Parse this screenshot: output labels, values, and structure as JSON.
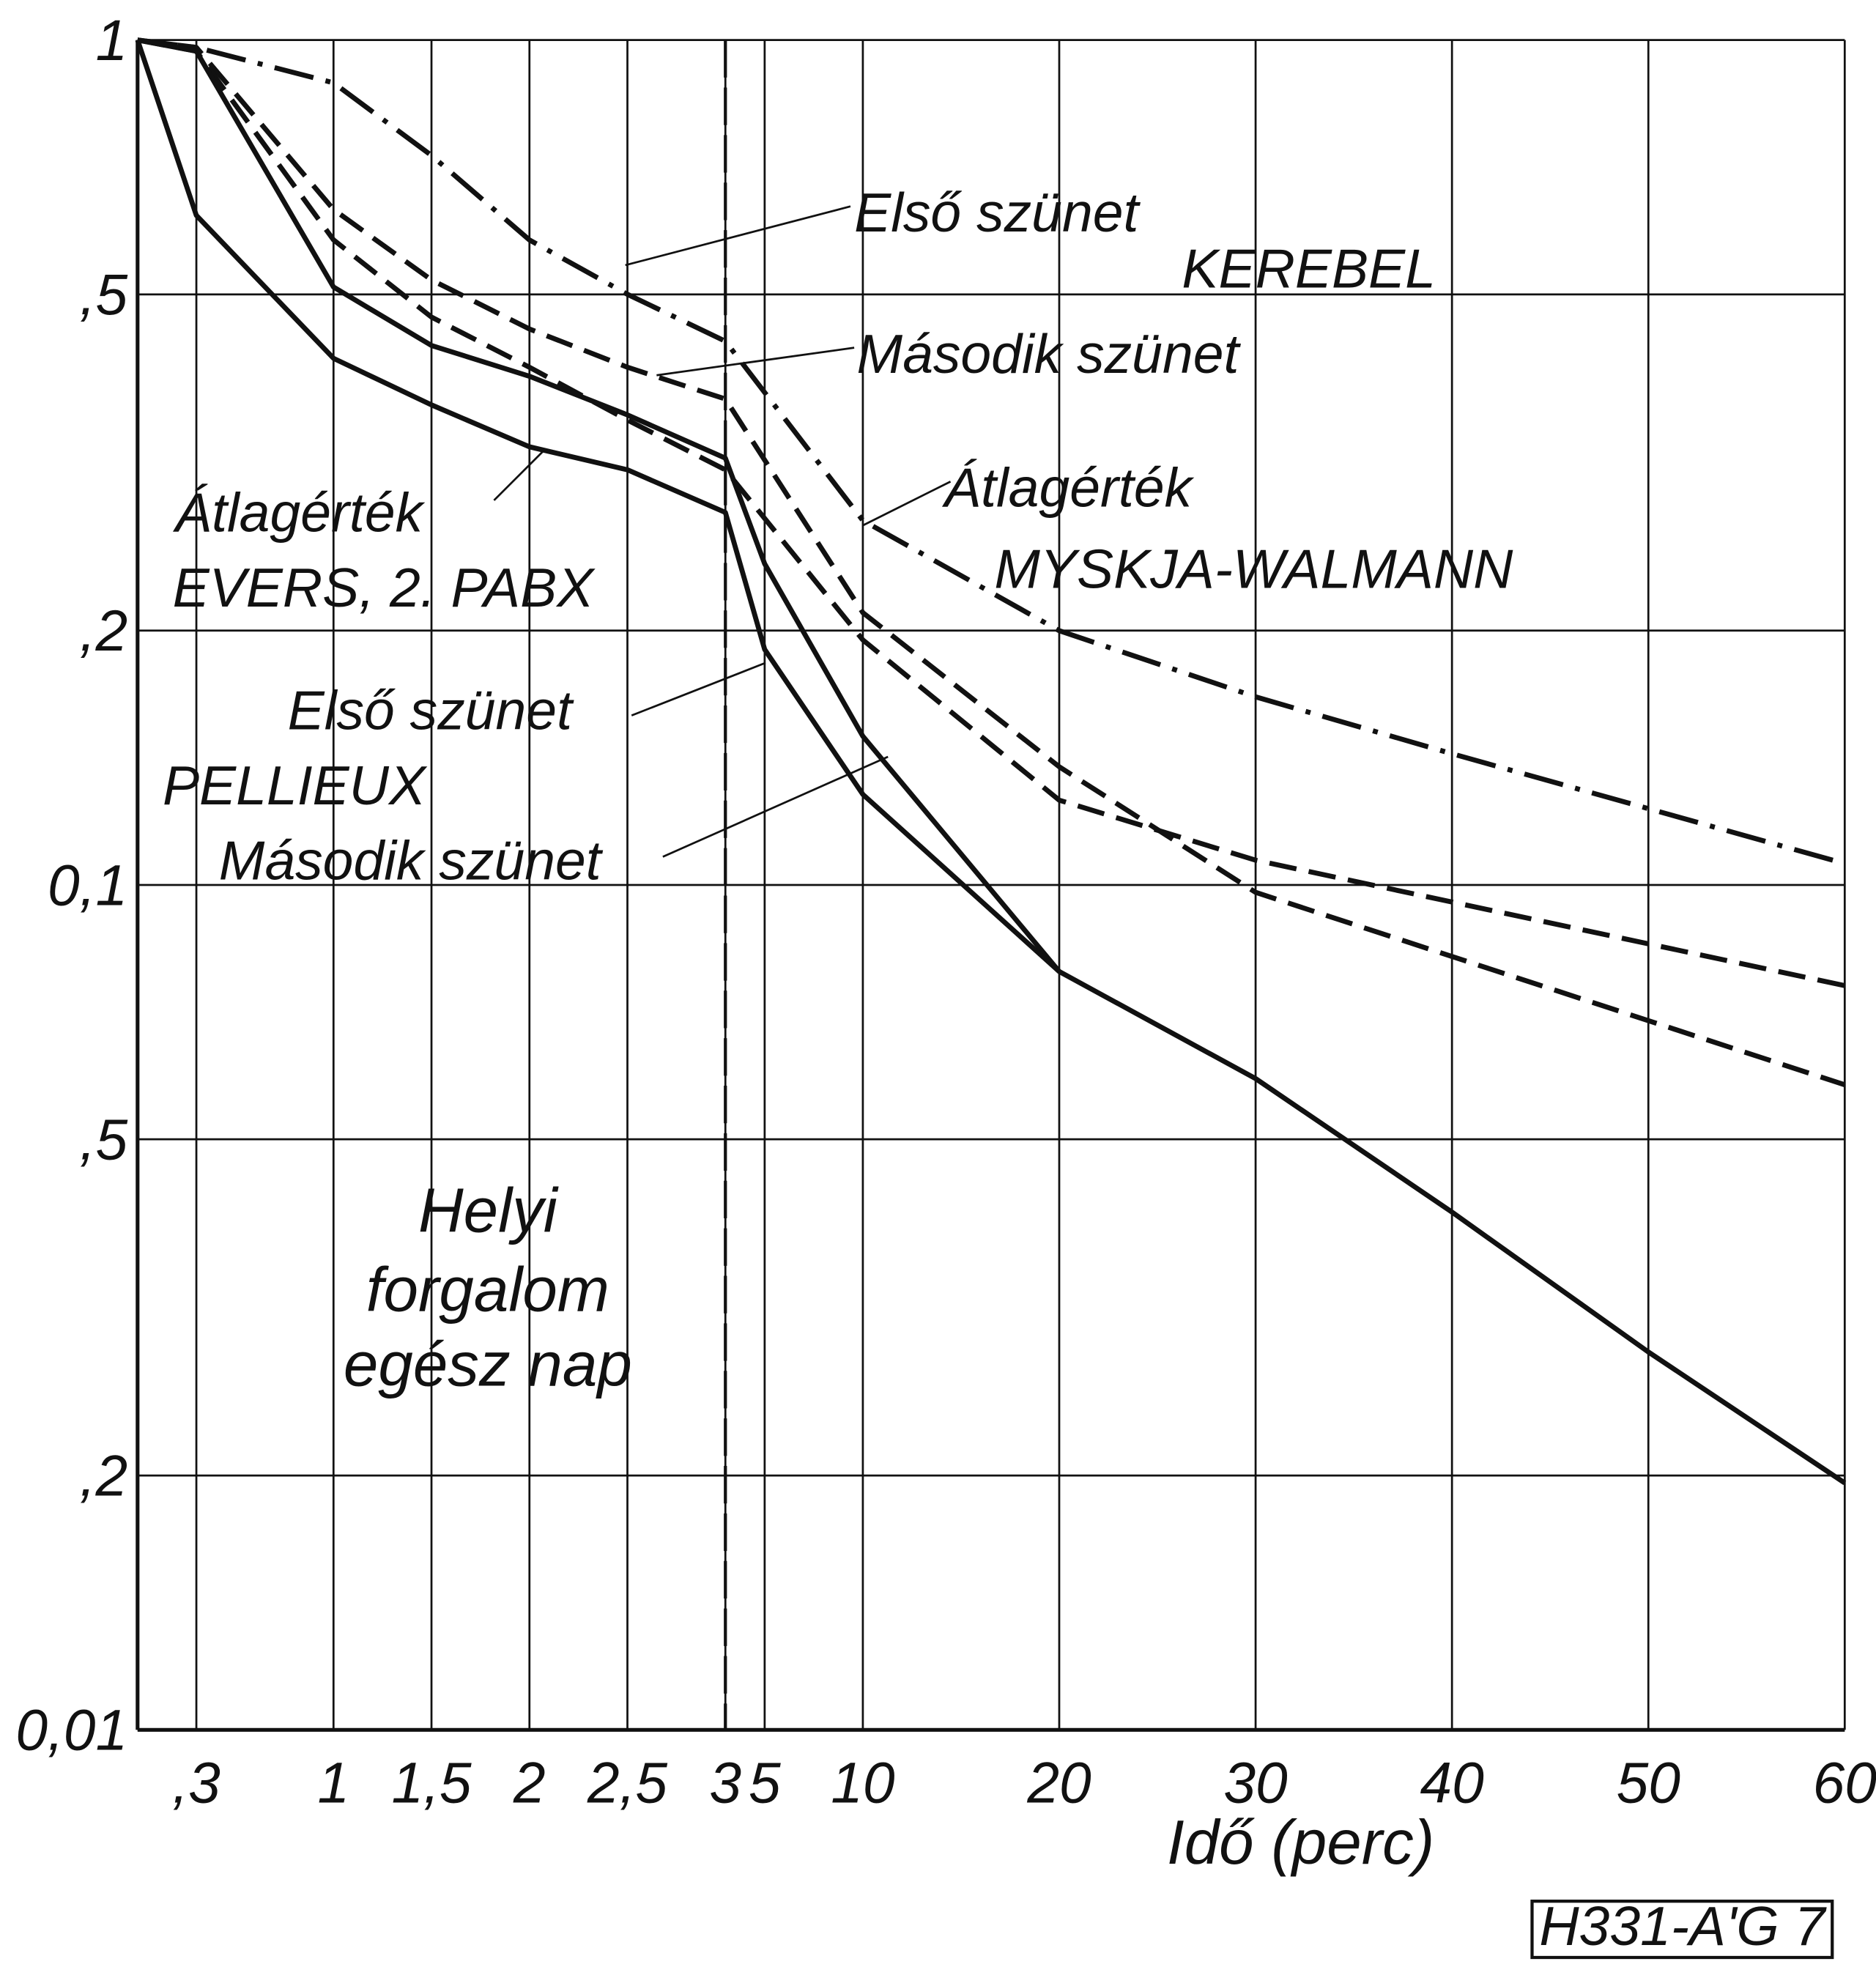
{
  "chart_data": {
    "type": "line",
    "xlabel": "Idő (perc)",
    "code": "H331-A'G 7",
    "annotations": [
      "Első szünet",
      "KEREBEL",
      "Második szünet",
      "Átlagérték",
      "MYSKJA-WALMANN",
      "Átlagérték",
      "EVERS, 2. PABX",
      "Első szünet",
      "PELLIEUX",
      "Második szünet",
      "Helyi",
      "forgalom",
      "egész nap"
    ],
    "log_y": true,
    "grid": true,
    "x_break": 3,
    "xlim": [
      0,
      60
    ],
    "ylim": [
      0.01,
      1
    ],
    "xticks": [
      {
        "value": 0.3,
        "label": ",3"
      },
      1,
      {
        "value": 1.5,
        "label": "1,5"
      },
      2,
      {
        "value": 2.5,
        "label": "2,5"
      },
      3,
      5,
      10,
      20,
      30,
      40,
      50,
      60
    ],
    "yticks": [
      1,
      {
        "value": 0.5,
        "label": ",5"
      },
      {
        "value": 0.2,
        "label": ",2"
      },
      {
        "value": 0.1,
        "label": "0,1"
      },
      {
        "value": 0.05,
        "label": ",5"
      },
      {
        "value": 0.02,
        "label": ",2"
      },
      {
        "value": 0.01,
        "label": "0,01"
      }
    ],
    "series": [
      {
        "style": "dashdot",
        "color": "#111",
        "x": [
          0,
          0.3,
          1,
          1.5,
          2,
          2.5,
          3,
          10,
          20,
          30,
          40,
          60
        ],
        "values": [
          1,
          0.98,
          0.89,
          0.73,
          0.58,
          0.5,
          0.44,
          0.27,
          0.2,
          0.167,
          0.143,
          0.106
        ]
      },
      {
        "style": "dashed",
        "color": "#111",
        "x": [
          0,
          0.3,
          1,
          1.5,
          2,
          2.5,
          3,
          10,
          20,
          30,
          60
        ],
        "values": [
          1,
          0.98,
          0.63,
          0.52,
          0.455,
          0.41,
          0.376,
          0.21,
          0.138,
          0.098,
          0.058
        ]
      },
      {
        "style": "dashed",
        "color": "#111",
        "x": [
          0,
          0.3,
          1,
          1.5,
          2,
          2.5,
          3,
          10,
          20,
          30,
          60
        ],
        "values": [
          1,
          0.97,
          0.58,
          0.47,
          0.41,
          0.355,
          0.31,
          0.195,
          0.126,
          0.107,
          0.076
        ]
      },
      {
        "style": "solid",
        "color": "#111",
        "x": [
          0,
          0.3,
          1,
          1.5,
          2,
          2.5,
          3,
          5,
          10,
          20
        ],
        "values": [
          1,
          0.97,
          0.51,
          0.435,
          0.4,
          0.36,
          0.32,
          0.24,
          0.15,
          0.079
        ]
      },
      {
        "style": "solid",
        "color": "#111",
        "x": [
          0,
          0.3,
          1,
          1.5,
          2,
          2.5,
          3,
          5,
          10,
          20,
          30,
          40,
          50,
          60
        ],
        "values": [
          1,
          0.62,
          0.42,
          0.37,
          0.33,
          0.31,
          0.276,
          0.19,
          0.128,
          0.079,
          0.059,
          0.041,
          0.028,
          0.0196
        ]
      }
    ]
  }
}
